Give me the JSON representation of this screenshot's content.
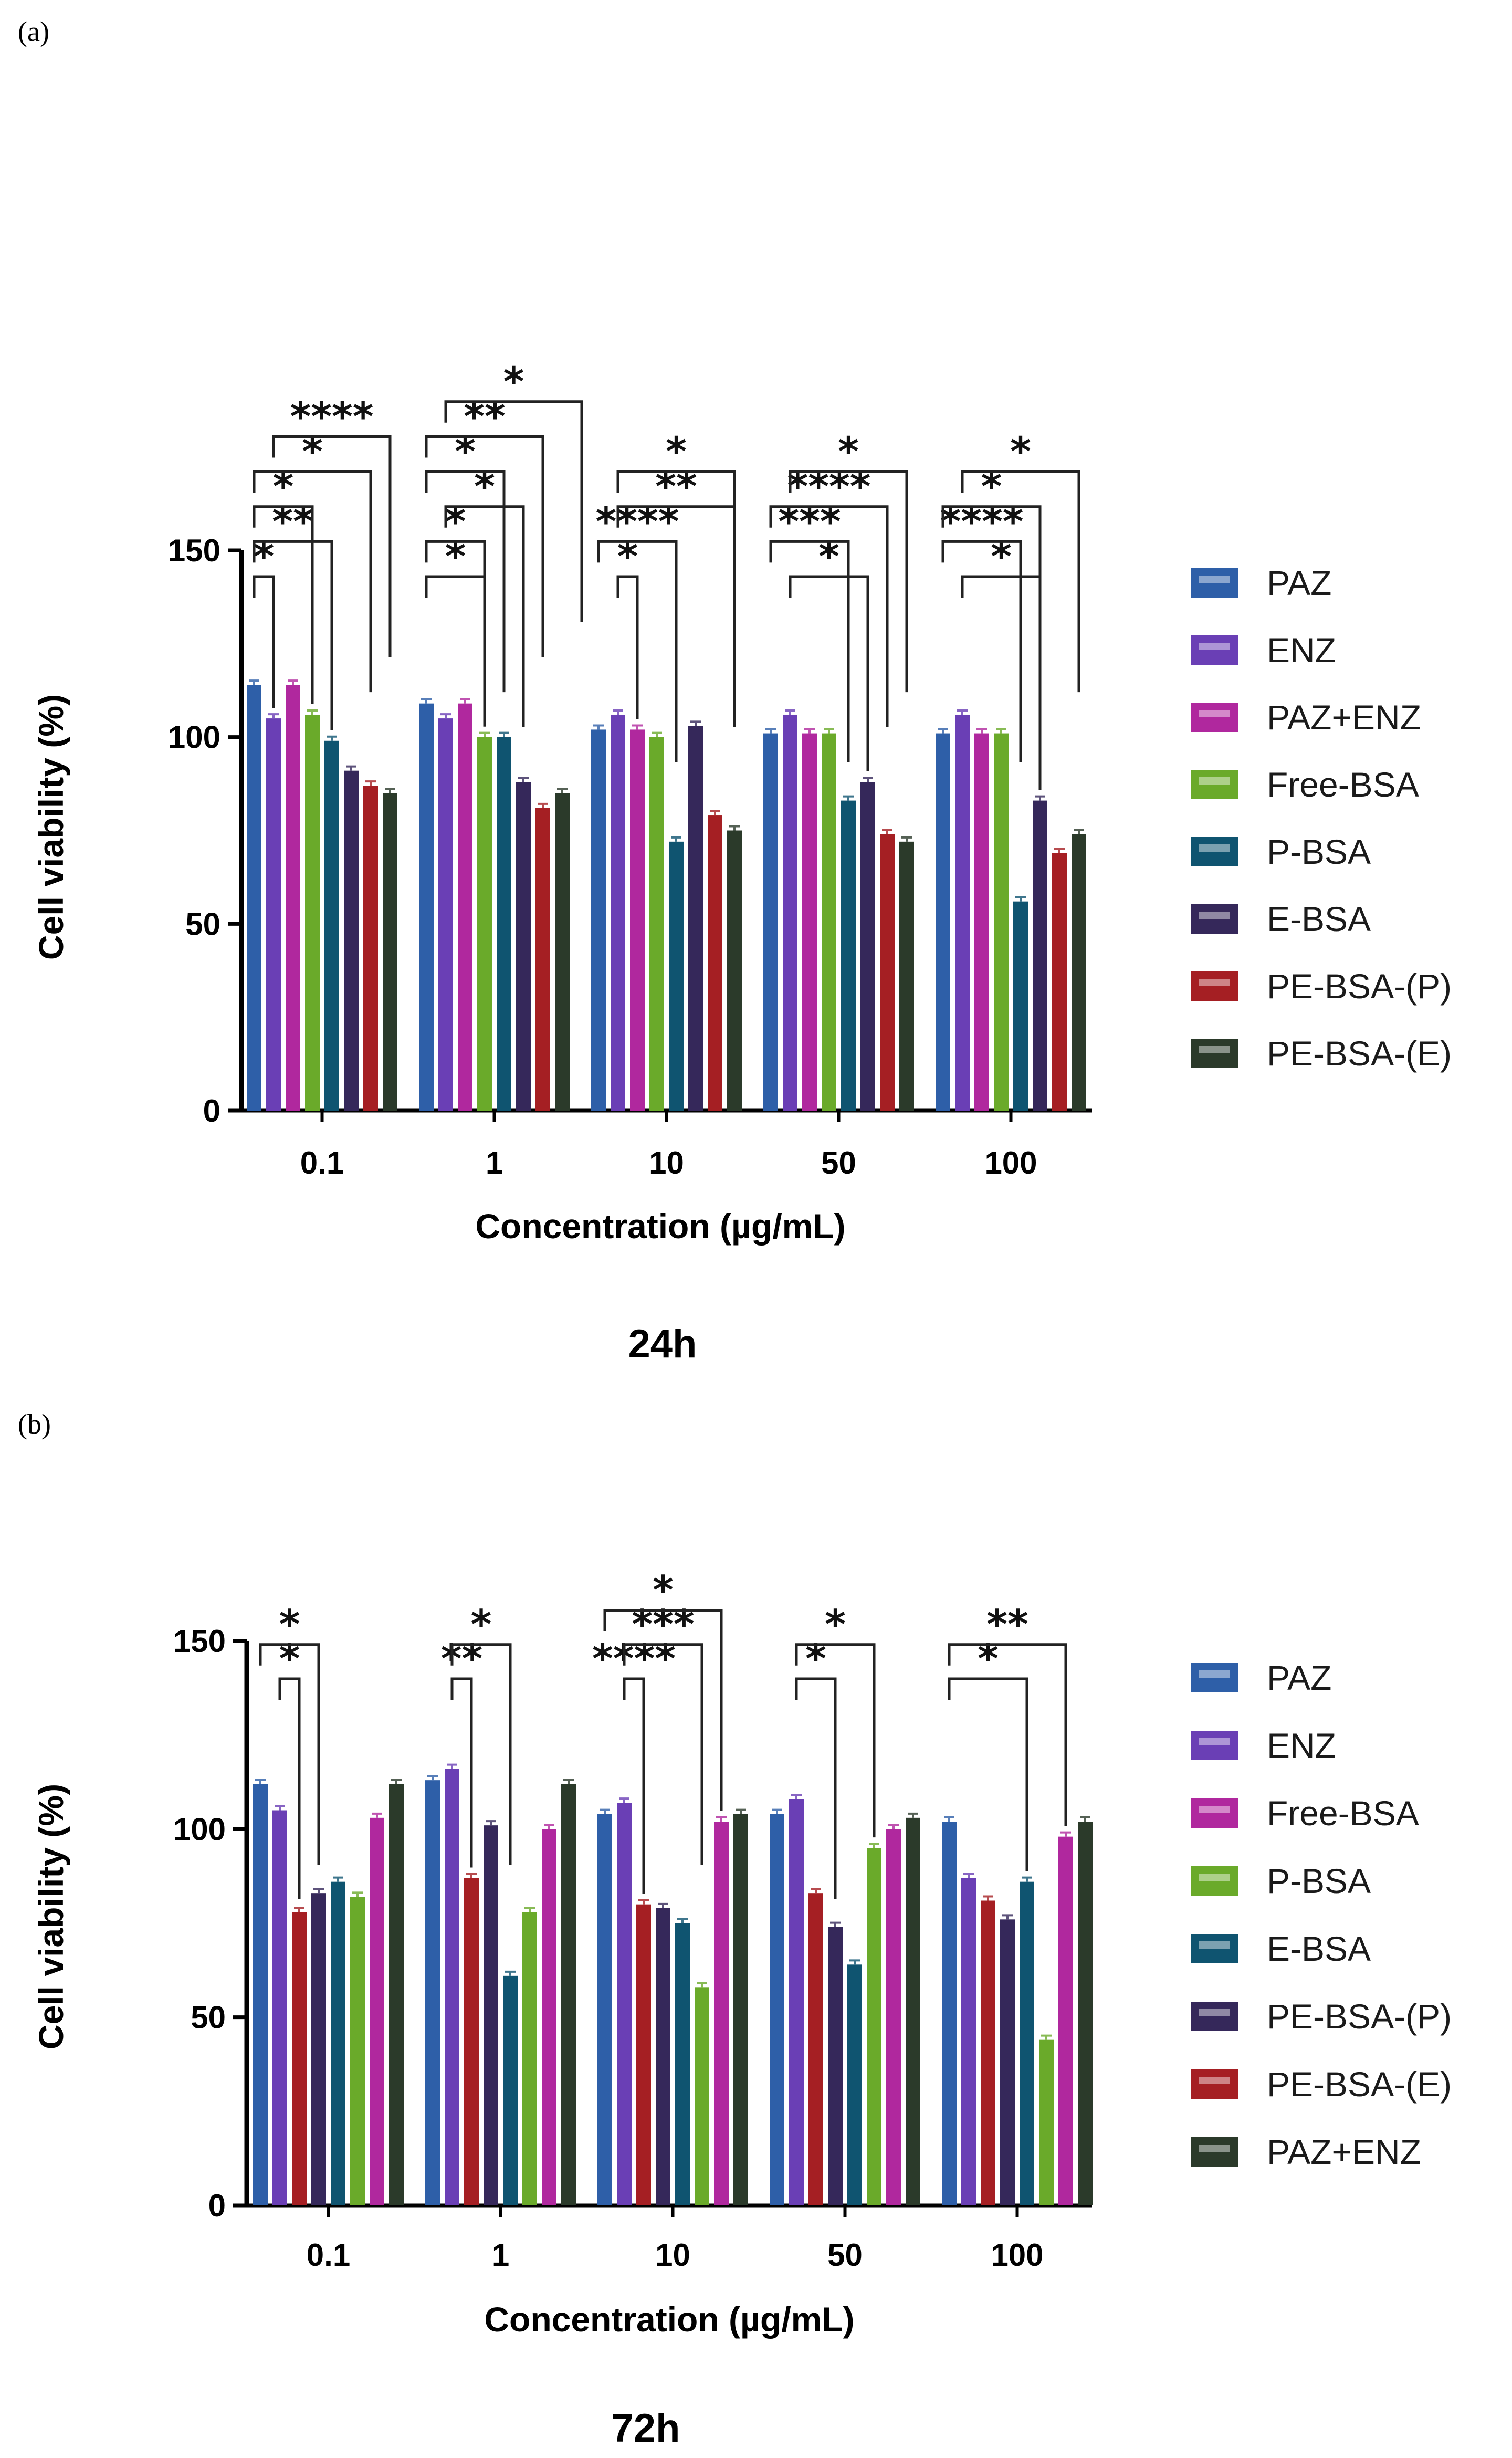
{
  "chart_data": [
    {
      "type": "bar",
      "panel_label": "(a)",
      "title": "24h",
      "xlabel": "Concentration (µg/mL)",
      "ylabel": "Cell viability (%)",
      "ylim": [
        0,
        150
      ],
      "yticks": [
        "0",
        "50",
        "100",
        "150"
      ],
      "categories": [
        "0.1",
        "1",
        "10",
        "50",
        "100"
      ],
      "series": [
        {
          "name": "PAZ",
          "color": "#2e5fa8",
          "values": [
            114,
            109,
            102,
            101,
            101
          ]
        },
        {
          "name": "ENZ",
          "color": "#6a3fb5",
          "values": [
            105,
            105,
            106,
            106,
            106
          ]
        },
        {
          "name": "PAZ+ENZ",
          "color": "#b0289e",
          "values": [
            114,
            109,
            102,
            101,
            101
          ]
        },
        {
          "name": "Free-BSA",
          "color": "#6aaa2a",
          "values": [
            106,
            100,
            100,
            101,
            101
          ]
        },
        {
          "name": "P-BSA",
          "color": "#0f5470",
          "values": [
            99,
            100,
            72,
            83,
            56
          ]
        },
        {
          "name": "E-BSA",
          "color": "#35285a",
          "values": [
            91,
            88,
            103,
            88,
            83
          ]
        },
        {
          "name": "PE-BSA-(P)",
          "color": "#a51f23",
          "values": [
            87,
            81,
            79,
            74,
            69
          ]
        },
        {
          "name": "PE-BSA-(E)",
          "color": "#2b3a2a",
          "values": [
            85,
            85,
            75,
            72,
            74
          ]
        }
      ],
      "significance": [
        {
          "category": "0.1",
          "from_series": 0,
          "to_series": 1,
          "label": "*"
        },
        {
          "category": "0.1",
          "from_series": 0,
          "to_series": 4,
          "label": "**"
        },
        {
          "category": "0.1",
          "from_series": 0,
          "to_series": 3,
          "label": "*"
        },
        {
          "category": "0.1",
          "from_series": 0,
          "to_series": 6,
          "label": "*"
        },
        {
          "category": "0.1",
          "from_series": 1,
          "to_series": 7,
          "label": "****"
        },
        {
          "category": "1",
          "from_series": 0,
          "to_series": 3,
          "label": "*"
        },
        {
          "category": "1",
          "from_series": 0,
          "to_series": 3,
          "label": "*"
        },
        {
          "category": "1",
          "from_series": 1,
          "to_series": 5,
          "label": "*"
        },
        {
          "category": "1",
          "from_series": 0,
          "to_series": 4,
          "label": "*"
        },
        {
          "category": "1",
          "from_series": 0,
          "to_series": 6,
          "label": "**"
        },
        {
          "category": "1",
          "from_series": 1,
          "to_series": 8,
          "label": "*"
        },
        {
          "category": "10",
          "from_series": 1,
          "to_series": 2,
          "label": "*"
        },
        {
          "category": "10",
          "from_series": 0,
          "to_series": 4,
          "label": "****"
        },
        {
          "category": "10",
          "from_series": 1,
          "to_series": 7,
          "label": "**"
        },
        {
          "category": "10",
          "from_series": 1,
          "to_series": 7,
          "label": "*"
        },
        {
          "category": "50",
          "from_series": 1,
          "to_series": 5,
          "label": "*"
        },
        {
          "category": "50",
          "from_series": 0,
          "to_series": 4,
          "label": "***"
        },
        {
          "category": "50",
          "from_series": 0,
          "to_series": 6,
          "label": "****"
        },
        {
          "category": "50",
          "from_series": 1,
          "to_series": 7,
          "label": "*"
        },
        {
          "category": "100",
          "from_series": 1,
          "to_series": 5,
          "label": "*"
        },
        {
          "category": "100",
          "from_series": 0,
          "to_series": 4,
          "label": "****"
        },
        {
          "category": "100",
          "from_series": 0,
          "to_series": 5,
          "label": "*"
        },
        {
          "category": "100",
          "from_series": 1,
          "to_series": 7,
          "label": "*"
        }
      ]
    },
    {
      "type": "bar",
      "panel_label": "(b)",
      "title": "72h",
      "xlabel": "Concentration (µg/mL)",
      "ylabel": "Cell viability (%)",
      "ylim": [
        0,
        150
      ],
      "yticks": [
        "0",
        "50",
        "100",
        "150"
      ],
      "categories": [
        "0.1",
        "1",
        "10",
        "50",
        "100"
      ],
      "series": [
        {
          "name": "PAZ",
          "color": "#2e5fa8",
          "values": [
            112,
            113,
            104,
            104,
            102
          ]
        },
        {
          "name": "ENZ",
          "color": "#6a3fb5",
          "values": [
            105,
            116,
            107,
            108,
            87
          ]
        },
        {
          "name": "PE-BSA-(E)",
          "color": "#a51f23",
          "values": [
            78,
            87,
            80,
            83,
            81
          ]
        },
        {
          "name": "PE-BSA-(P)",
          "color": "#35285a",
          "values": [
            83,
            101,
            79,
            74,
            76
          ]
        },
        {
          "name": "E-BSA",
          "color": "#0f5470",
          "values": [
            86,
            61,
            75,
            64,
            86
          ]
        },
        {
          "name": "P-BSA",
          "color": "#6aaa2a",
          "values": [
            82,
            78,
            58,
            95,
            44
          ]
        },
        {
          "name": "Free-BSA",
          "color": "#b0289e",
          "values": [
            103,
            100,
            102,
            100,
            98
          ]
        },
        {
          "name": "PAZ+ENZ",
          "color": "#2b3a2a",
          "values": [
            112,
            112,
            104,
            103,
            102
          ]
        }
      ],
      "legend_order": [
        "PAZ",
        "ENZ",
        "Free-BSA",
        "P-BSA",
        "E-BSA",
        "PE-BSA-(P)",
        "PE-BSA-(E)",
        "PAZ+ENZ"
      ],
      "significance": [
        {
          "category": "0.1",
          "from_series": 1,
          "to_series": 2,
          "label": "*"
        },
        {
          "category": "0.1",
          "from_series": 0,
          "to_series": 3,
          "label": "*"
        },
        {
          "category": "1",
          "from_series": 1,
          "to_series": 2,
          "label": "**"
        },
        {
          "category": "1",
          "from_series": 1,
          "to_series": 4,
          "label": "*"
        },
        {
          "category": "10",
          "from_series": 1,
          "to_series": 2,
          "label": "****"
        },
        {
          "category": "10",
          "from_series": 1,
          "to_series": 5,
          "label": "***"
        },
        {
          "category": "10",
          "from_series": 0,
          "to_series": 6,
          "label": "*"
        },
        {
          "category": "50",
          "from_series": 1,
          "to_series": 3,
          "label": "*"
        },
        {
          "category": "50",
          "from_series": 1,
          "to_series": 5,
          "label": "*"
        },
        {
          "category": "100",
          "from_series": 0,
          "to_series": 4,
          "label": "*"
        },
        {
          "category": "100",
          "from_series": 0,
          "to_series": 6,
          "label": "**"
        }
      ]
    }
  ]
}
